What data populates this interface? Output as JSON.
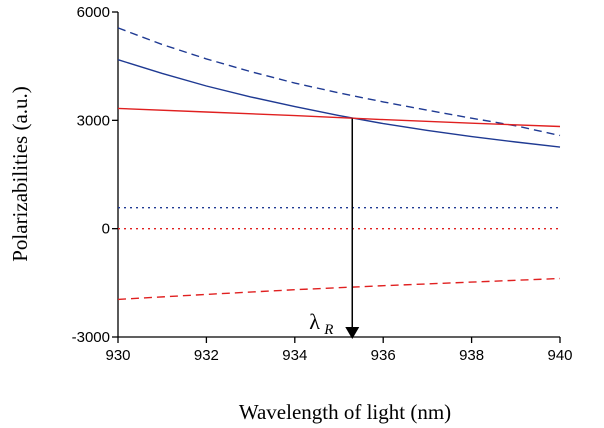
{
  "chart_data": {
    "type": "line",
    "title": "",
    "xlabel": "Wavelength of light (nm)",
    "ylabel": "Polarizabilities (a.u.)",
    "xlim": [
      930,
      940
    ],
    "ylim": [
      -3000,
      6000
    ],
    "xticks": [
      930,
      932,
      934,
      936,
      938,
      940
    ],
    "yticks": [
      -3000,
      0,
      3000,
      6000
    ],
    "grid": false,
    "legend": "none",
    "series": [
      {
        "color": "#1f3a93",
        "dash": "solid",
        "x": [
          930,
          931,
          932,
          933,
          934,
          935,
          936,
          937,
          938,
          939,
          940
        ],
        "y": [
          4680,
          4300,
          3950,
          3650,
          3380,
          3130,
          2910,
          2720,
          2550,
          2400,
          2260
        ]
      },
      {
        "color": "#1f3a93",
        "dash": "dashed",
        "x": [
          930,
          931,
          932,
          933,
          934,
          935,
          936,
          937,
          938,
          939,
          940
        ],
        "y": [
          5560,
          5100,
          4700,
          4350,
          4030,
          3760,
          3510,
          3280,
          3060,
          2850,
          2580
        ]
      },
      {
        "color": "#1f3a93",
        "dash": "dotted",
        "x": [
          930,
          940
        ],
        "y": [
          580,
          580
        ]
      },
      {
        "color": "#e02020",
        "dash": "solid",
        "x": [
          930,
          932,
          934,
          936,
          938,
          940
        ],
        "y": [
          3330,
          3230,
          3130,
          3020,
          2920,
          2830
        ]
      },
      {
        "color": "#e02020",
        "dash": "dotted",
        "x": [
          930,
          940
        ],
        "y": [
          0,
          0
        ]
      },
      {
        "color": "#e02020",
        "dash": "dashed",
        "x": [
          930,
          932,
          934,
          936,
          938,
          940
        ],
        "y": [
          -1960,
          -1820,
          -1690,
          -1580,
          -1480,
          -1380
        ]
      }
    ],
    "annotations": [
      {
        "label": "λ",
        "subscript": "R",
        "x": 935.3,
        "y_from": 3050,
        "y_to": -3000
      }
    ]
  }
}
